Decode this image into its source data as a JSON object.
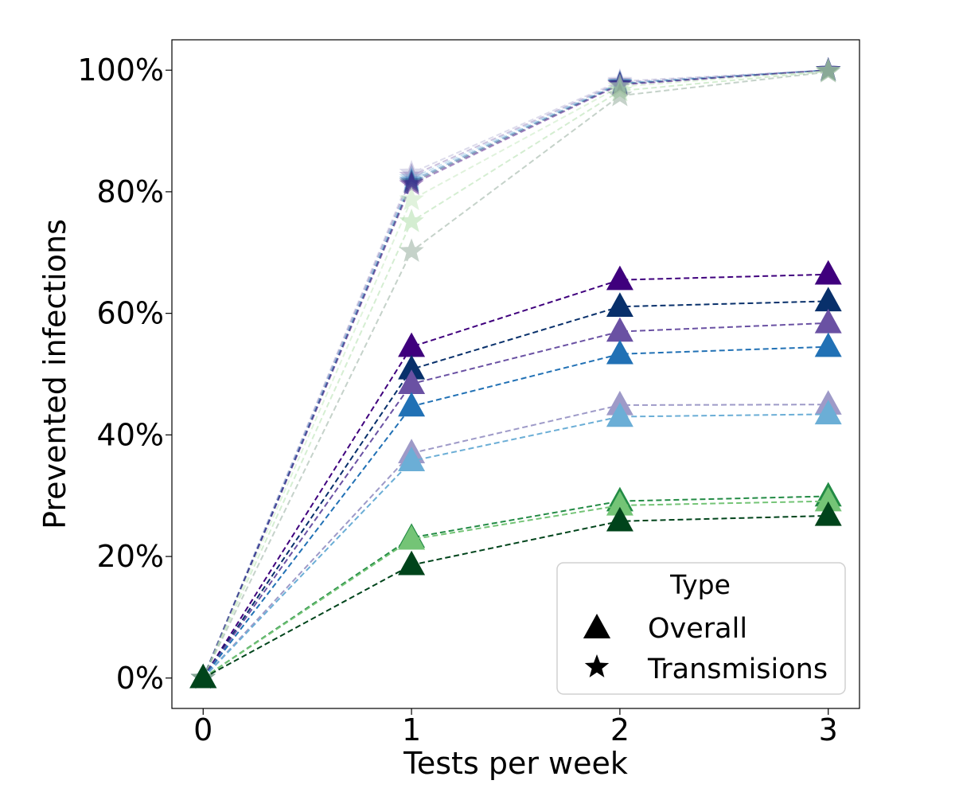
{
  "chart_data": {
    "type": "line",
    "title": "",
    "xlabel": "Tests per week",
    "ylabel": "Prevented infections",
    "x": [
      0,
      1,
      2,
      3
    ],
    "x_ticks": [
      "0",
      "1",
      "2",
      "3"
    ],
    "xlim": [
      -0.15,
      3.15
    ],
    "ylim": [
      -0.05,
      1.05
    ],
    "y_ticks": [
      0,
      0.2,
      0.4,
      0.6,
      0.8,
      1.0
    ],
    "y_tick_labels": [
      "0%",
      "20%",
      "40%",
      "60%",
      "80%",
      "100%"
    ],
    "grid": false,
    "legend": {
      "title": "Type",
      "placement": "lower-right",
      "entries": [
        {
          "label": "Overall",
          "marker": "triangle"
        },
        {
          "label": "Transmisions",
          "marker": "star"
        }
      ]
    },
    "series": [
      {
        "marker": "triangle",
        "color": "#3f007d",
        "opacity": 1.0,
        "values": [
          0,
          0.545,
          0.655,
          0.664
        ]
      },
      {
        "marker": "triangle",
        "color": "#08306b",
        "opacity": 1.0,
        "values": [
          0,
          0.508,
          0.611,
          0.62
        ]
      },
      {
        "marker": "triangle",
        "color": "#6a51a3",
        "opacity": 1.0,
        "values": [
          0,
          0.484,
          0.57,
          0.584
        ]
      },
      {
        "marker": "triangle",
        "color": "#2171b5",
        "opacity": 1.0,
        "values": [
          0,
          0.447,
          0.533,
          0.545
        ]
      },
      {
        "marker": "triangle",
        "color": "#9e9ac8",
        "opacity": 1.0,
        "values": [
          0,
          0.37,
          0.449,
          0.45
        ]
      },
      {
        "marker": "triangle",
        "color": "#6baed6",
        "opacity": 1.0,
        "values": [
          0,
          0.357,
          0.43,
          0.434
        ]
      },
      {
        "marker": "triangle",
        "color": "#238b45",
        "opacity": 1.0,
        "values": [
          0,
          0.231,
          0.291,
          0.299
        ]
      },
      {
        "marker": "triangle",
        "color": "#74c476",
        "opacity": 1.0,
        "values": [
          0,
          0.228,
          0.284,
          0.291
        ]
      },
      {
        "marker": "triangle",
        "color": "#00441b",
        "opacity": 1.0,
        "values": [
          0,
          0.186,
          0.258,
          0.267
        ]
      },
      {
        "marker": "star",
        "color": "#9e9ac8",
        "opacity": 0.35,
        "values": [
          0,
          0.831,
          0.982,
          1.0
        ]
      },
      {
        "marker": "star",
        "color": "#6a51a3",
        "opacity": 0.35,
        "values": [
          0,
          0.826,
          0.98,
          1.0
        ]
      },
      {
        "marker": "star",
        "color": "#6baed6",
        "opacity": 0.35,
        "values": [
          0,
          0.822,
          0.979,
          1.0
        ]
      },
      {
        "marker": "star",
        "color": "#2171b5",
        "opacity": 0.45,
        "values": [
          0,
          0.818,
          0.978,
          1.0
        ]
      },
      {
        "marker": "star",
        "color": "#08306b",
        "opacity": 0.45,
        "values": [
          0,
          0.815,
          0.977,
          1.0
        ]
      },
      {
        "marker": "star",
        "color": "#3f007d",
        "opacity": 0.45,
        "values": [
          0,
          0.812,
          0.976,
          1.0
        ]
      },
      {
        "marker": "star",
        "color": "#c7e9c0",
        "opacity": 0.55,
        "values": [
          0,
          0.787,
          0.973,
          0.999
        ]
      },
      {
        "marker": "star",
        "color": "#a1d99b",
        "opacity": 0.45,
        "values": [
          0,
          0.751,
          0.966,
          0.998
        ]
      },
      {
        "marker": "star",
        "color": "#7f9c8a",
        "opacity": 0.45,
        "values": [
          0,
          0.702,
          0.958,
          0.997
        ]
      }
    ]
  }
}
